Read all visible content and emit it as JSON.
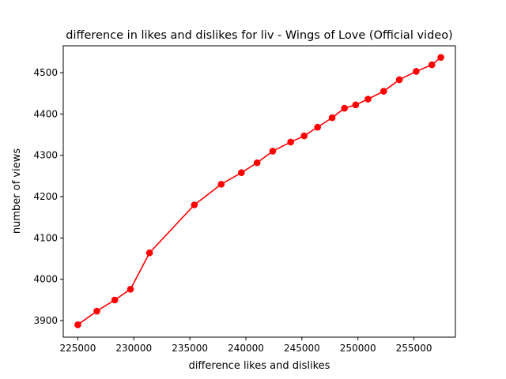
{
  "chart_data": {
    "type": "line",
    "title": "difference in likes and dislikes for liv - Wings of Love (Official video)",
    "xlabel": "difference likes and dislikes",
    "ylabel": "number of views",
    "xlim": [
      223700,
      258700
    ],
    "ylim": [
      3860,
      4565
    ],
    "xticks": [
      225000,
      230000,
      235000,
      240000,
      245000,
      250000,
      255000
    ],
    "yticks": [
      3900,
      4000,
      4100,
      4200,
      4300,
      4400,
      4500
    ],
    "grid": false,
    "series": [
      {
        "color": "#ff0000",
        "marker": "circle",
        "points": [
          [
            225000,
            3890
          ],
          [
            226700,
            3923
          ],
          [
            228300,
            3950
          ],
          [
            229700,
            3976
          ],
          [
            231400,
            4064
          ],
          [
            235400,
            4180
          ],
          [
            237800,
            4230
          ],
          [
            239600,
            4258
          ],
          [
            241000,
            4282
          ],
          [
            242400,
            4310
          ],
          [
            244000,
            4332
          ],
          [
            245200,
            4347
          ],
          [
            246400,
            4368
          ],
          [
            247700,
            4391
          ],
          [
            248800,
            4414
          ],
          [
            249800,
            4422
          ],
          [
            250900,
            4436
          ],
          [
            252300,
            4455
          ],
          [
            253700,
            4483
          ],
          [
            255200,
            4503
          ],
          [
            256600,
            4519
          ],
          [
            257400,
            4537
          ]
        ]
      }
    ]
  }
}
